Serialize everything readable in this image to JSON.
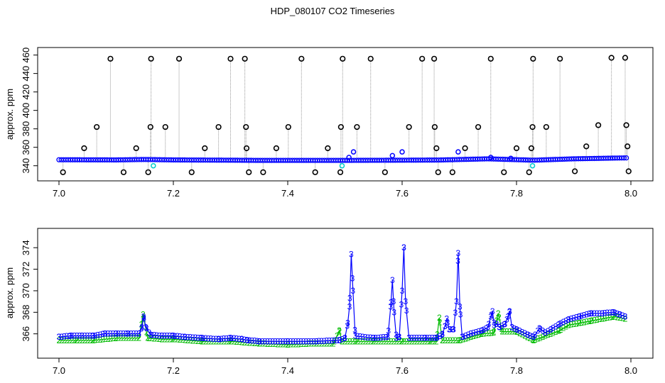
{
  "title": "HDP_080107  CO2 Timeseries",
  "chart_data": [
    {
      "type": "scatter",
      "ylabel": "approx. ppm",
      "xlim": [
        7.0,
        8.0
      ],
      "ylim": [
        329,
        462
      ],
      "xticks": [
        "7.0",
        "7.2",
        "7.4",
        "7.6",
        "7.8",
        "8.0"
      ],
      "yticks": [
        "340",
        "360",
        "380",
        "400",
        "420",
        "440",
        "460"
      ],
      "baseline": [
        [
          7.0,
          346.5
        ],
        [
          7.1,
          346.3
        ],
        [
          7.15,
          346.8
        ],
        [
          7.2,
          346.3
        ],
        [
          7.3,
          346.0
        ],
        [
          7.35,
          345.8
        ],
        [
          7.5,
          345.8
        ],
        [
          7.6,
          346.0
        ],
        [
          7.665,
          346.2
        ],
        [
          7.75,
          347.5
        ],
        [
          7.83,
          346.0
        ],
        [
          7.9,
          347.5
        ],
        [
          7.99,
          348.5
        ]
      ],
      "spikes": [
        [
          7.007,
          333
        ],
        [
          7.044,
          359
        ],
        [
          7.066,
          382
        ],
        [
          7.09,
          456
        ],
        [
          7.113,
          333
        ],
        [
          7.135,
          359
        ],
        [
          7.156,
          333
        ],
        [
          7.16,
          382
        ],
        [
          7.161,
          456
        ],
        [
          7.186,
          382
        ],
        [
          7.21,
          456
        ],
        [
          7.232,
          333
        ],
        [
          7.255,
          359
        ],
        [
          7.279,
          382
        ],
        [
          7.3,
          456
        ],
        [
          7.325,
          456
        ],
        [
          7.327,
          382
        ],
        [
          7.328,
          359
        ],
        [
          7.332,
          333
        ],
        [
          7.357,
          333
        ],
        [
          7.38,
          359
        ],
        [
          7.401,
          382
        ],
        [
          7.424,
          456
        ],
        [
          7.448,
          333
        ],
        [
          7.47,
          359
        ],
        [
          7.492,
          333
        ],
        [
          7.493,
          382
        ],
        [
          7.496,
          456
        ],
        [
          7.521,
          382
        ],
        [
          7.545,
          456
        ],
        [
          7.57,
          333
        ],
        [
          7.612,
          382
        ],
        [
          7.635,
          456
        ],
        [
          7.656,
          456
        ],
        [
          7.657,
          382
        ],
        [
          7.66,
          359
        ],
        [
          7.663,
          333
        ],
        [
          7.688,
          333
        ],
        [
          7.71,
          359
        ],
        [
          7.733,
          382
        ],
        [
          7.755,
          456
        ],
        [
          7.778,
          333
        ],
        [
          7.8,
          359
        ],
        [
          7.822,
          333
        ],
        [
          7.826,
          359
        ],
        [
          7.828,
          382
        ],
        [
          7.829,
          456
        ],
        [
          7.852,
          382
        ],
        [
          7.876,
          456
        ],
        [
          7.902,
          334
        ],
        [
          7.922,
          361
        ],
        [
          7.943,
          384
        ],
        [
          7.966,
          457
        ],
        [
          7.99,
          457
        ],
        [
          7.992,
          384
        ],
        [
          7.994,
          361
        ],
        [
          7.996,
          334
        ]
      ],
      "blue_points": [
        [
          7.507,
          349
        ],
        [
          7.515,
          355
        ],
        [
          7.583,
          351
        ],
        [
          7.6,
          355
        ],
        [
          7.698,
          355
        ],
        [
          7.755,
          349
        ],
        [
          7.79,
          348
        ]
      ],
      "cyan_points": [
        [
          7.165,
          340
        ],
        [
          7.495,
          340
        ],
        [
          7.828,
          340
        ]
      ]
    },
    {
      "type": "line",
      "ylabel": "approx. ppm",
      "xlim": [
        7.0,
        8.0
      ],
      "ylim": [
        364.2,
        375.2
      ],
      "xticks": [
        "7.0",
        "7.2",
        "7.4",
        "7.6",
        "7.8",
        "8.0"
      ],
      "yticks": [
        "366",
        "368",
        "370",
        "372",
        "374"
      ],
      "series": [
        {
          "name": "3",
          "color": "#0000ff",
          "points": [
            [
              7.0,
              365.7
            ],
            [
              7.02,
              365.8
            ],
            [
              7.04,
              365.8
            ],
            [
              7.06,
              365.8
            ],
            [
              7.08,
              366.0
            ],
            [
              7.1,
              366.0
            ],
            [
              7.12,
              366.0
            ],
            [
              7.14,
              366.0
            ],
            [
              7.145,
              366.6
            ],
            [
              7.148,
              367.6
            ],
            [
              7.152,
              366.6
            ],
            [
              7.16,
              365.9
            ],
            [
              7.18,
              365.8
            ],
            [
              7.2,
              365.8
            ],
            [
              7.22,
              365.7
            ],
            [
              7.25,
              365.6
            ],
            [
              7.28,
              365.5
            ],
            [
              7.3,
              365.6
            ],
            [
              7.32,
              365.5
            ],
            [
              7.33,
              365.4
            ],
            [
              7.35,
              365.3
            ],
            [
              7.4,
              365.3
            ],
            [
              7.45,
              365.3
            ],
            [
              7.49,
              365.4
            ],
            [
              7.5,
              365.6
            ],
            [
              7.505,
              367.0
            ],
            [
              7.508,
              368.5
            ],
            [
              7.511,
              373.4
            ],
            [
              7.514,
              370.0
            ],
            [
              7.518,
              365.8
            ],
            [
              7.55,
              365.6
            ],
            [
              7.575,
              365.7
            ],
            [
              7.58,
              368.5
            ],
            [
              7.583,
              371.0
            ],
            [
              7.586,
              368.0
            ],
            [
              7.59,
              365.6
            ],
            [
              7.595,
              365.7
            ],
            [
              7.6,
              370.0
            ],
            [
              7.603,
              374.0
            ],
            [
              7.606,
              369.0
            ],
            [
              7.612,
              365.6
            ],
            [
              7.64,
              365.6
            ],
            [
              7.66,
              365.6
            ],
            [
              7.67,
              365.9
            ],
            [
              7.675,
              366.7
            ],
            [
              7.678,
              367.4
            ],
            [
              7.682,
              366.4
            ],
            [
              7.69,
              366.4
            ],
            [
              7.695,
              369.0
            ],
            [
              7.698,
              373.5
            ],
            [
              7.701,
              368.5
            ],
            [
              7.705,
              365.7
            ],
            [
              7.72,
              366.0
            ],
            [
              7.74,
              366.3
            ],
            [
              7.75,
              366.6
            ],
            [
              7.755,
              367.6
            ],
            [
              7.758,
              368.1
            ],
            [
              7.761,
              366.8
            ],
            [
              7.765,
              366.9
            ],
            [
              7.77,
              366.6
            ],
            [
              7.78,
              366.9
            ],
            [
              7.785,
              367.6
            ],
            [
              7.788,
              368.1
            ],
            [
              7.792,
              366.6
            ],
            [
              7.8,
              366.4
            ],
            [
              7.82,
              365.9
            ],
            [
              7.83,
              365.7
            ],
            [
              7.84,
              366.5
            ],
            [
              7.85,
              366.1
            ],
            [
              7.86,
              366.4
            ],
            [
              7.875,
              366.9
            ],
            [
              7.89,
              367.3
            ],
            [
              7.91,
              367.6
            ],
            [
              7.93,
              367.9
            ],
            [
              7.95,
              367.9
            ],
            [
              7.97,
              368.0
            ],
            [
              7.98,
              367.8
            ],
            [
              7.99,
              367.6
            ]
          ]
        },
        {
          "name": "2",
          "color": "#00bb00",
          "points": [
            [
              7.0,
              365.4
            ],
            [
              7.03,
              365.4
            ],
            [
              7.06,
              365.4
            ],
            [
              7.1,
              365.6
            ],
            [
              7.14,
              365.6
            ],
            [
              7.147,
              367.8
            ],
            [
              7.155,
              365.6
            ],
            [
              7.18,
              365.5
            ],
            [
              7.2,
              365.5
            ],
            [
              7.25,
              365.3
            ],
            [
              7.3,
              365.3
            ],
            [
              7.35,
              365.1
            ],
            [
              7.4,
              365.0
            ],
            [
              7.45,
              365.1
            ],
            [
              7.48,
              365.1
            ],
            [
              7.49,
              366.3
            ],
            [
              7.495,
              365.3
            ],
            [
              7.52,
              365.3
            ],
            [
              7.55,
              365.3
            ],
            [
              7.6,
              365.3
            ],
            [
              7.65,
              365.3
            ],
            [
              7.66,
              365.3
            ],
            [
              7.665,
              367.5
            ],
            [
              7.67,
              365.4
            ],
            [
              7.7,
              365.4
            ],
            [
              7.72,
              365.7
            ],
            [
              7.74,
              366.0
            ],
            [
              7.76,
              366.1
            ],
            [
              7.768,
              367.9
            ],
            [
              7.775,
              366.2
            ],
            [
              7.8,
              366.2
            ],
            [
              7.83,
              365.4
            ],
            [
              7.85,
              365.8
            ],
            [
              7.875,
              366.3
            ],
            [
              7.89,
              366.8
            ],
            [
              7.91,
              367.0
            ],
            [
              7.93,
              367.2
            ],
            [
              7.95,
              367.4
            ],
            [
              7.97,
              367.6
            ],
            [
              7.99,
              367.4
            ]
          ]
        }
      ]
    }
  ]
}
